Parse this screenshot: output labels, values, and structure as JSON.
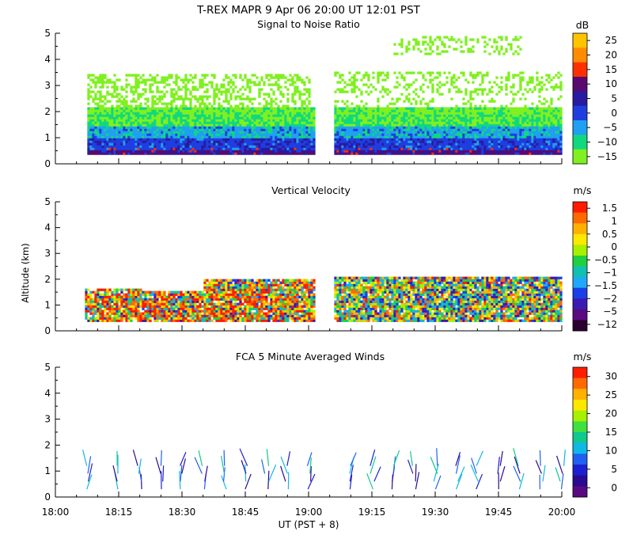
{
  "figure": {
    "title": "T-REX  MAPR  9 Apr 06  20:00 UT  12:01  PST",
    "xlabel": "UT  (PST + 8)",
    "ylabel": "Altitude (km)"
  },
  "chart_data": [
    {
      "type": "heatmap",
      "title": "Signal to Noise Ratio",
      "units": "dB",
      "xlim": [
        0,
        120
      ],
      "x_tick_minutes": [
        0,
        15,
        30,
        45,
        60,
        75,
        90,
        105,
        120
      ],
      "x_tick_labels": [
        "18:00",
        "18:15",
        "18:30",
        "18:45",
        "19:00",
        "19:15",
        "19:30",
        "19:45",
        "20:00"
      ],
      "ylim": [
        0,
        5
      ],
      "y_ticks": [
        0,
        1,
        2,
        3,
        4,
        5
      ],
      "data_gaps_minutes": [
        [
          0,
          7
        ],
        [
          61.5,
          66
        ],
        [
          120,
          120
        ]
      ],
      "colorbar_labels": [
        "25",
        "20",
        "15",
        "10",
        "5",
        "0",
        "−5",
        "−10",
        "−15"
      ],
      "colorbar_colors": [
        "#ffc400",
        "#ff8c00",
        "#ff3000",
        "#5a0a6e",
        "#2a1aa0",
        "#1f3ee0",
        "#20a0f0",
        "#10d880",
        "#80f020"
      ],
      "profile": [
        {
          "altitude_km": 0.5,
          "value_db": 5
        },
        {
          "altitude_km": 1.0,
          "value_db": 0
        },
        {
          "altitude_km": 1.5,
          "value_db": -5
        },
        {
          "altitude_km": 2.0,
          "value_db": -10
        },
        {
          "altitude_km": 3.2,
          "value_db": -15
        },
        {
          "altitude_km": 4.6,
          "value_db": -15
        }
      ]
    },
    {
      "type": "heatmap",
      "title": "Vertical Velocity",
      "units": "m/s",
      "xlim": [
        0,
        120
      ],
      "ylim": [
        0,
        5
      ],
      "y_ticks": [
        0,
        1,
        2,
        3,
        4,
        5
      ],
      "colorbar_labels": [
        "1.5",
        "1",
        "0.5",
        "0",
        "−0.5",
        "−1",
        "−1.5",
        "−2",
        "−5",
        "−12"
      ],
      "colorbar_colors": [
        "#ff1c00",
        "#ff6a00",
        "#ffb000",
        "#ffe800",
        "#a8f000",
        "#20d040",
        "#10c0b0",
        "#20a8f8",
        "#1a40e8",
        "#3a1ab0",
        "#5a0a80",
        "#2a0030"
      ],
      "max_altitude_km": 2.1
    },
    {
      "type": "barbs",
      "title": "FCA 5 Minute Averaged Winds",
      "units": "m/s",
      "xlim": [
        0,
        120
      ],
      "ylim": [
        0,
        5
      ],
      "y_ticks": [
        0,
        1,
        2,
        3,
        4,
        5
      ],
      "colorbar_labels": [
        "30",
        "25",
        "20",
        "15",
        "10",
        "5",
        "0"
      ],
      "colorbar_colors": [
        "#ff1c00",
        "#ff6a00",
        "#ffb000",
        "#ffe800",
        "#a8f000",
        "#40e040",
        "#10c890",
        "#10b8e8",
        "#2060f0",
        "#1a20d0",
        "#2a0a90",
        "#5a0a80"
      ],
      "barb_times_minutes": [
        8,
        15,
        20,
        25,
        30,
        35,
        40,
        45,
        50,
        55,
        60,
        70,
        75,
        80,
        85,
        90,
        95,
        100,
        105,
        110,
        115,
        120
      ],
      "barb_altitudes_km": [
        0.3,
        0.6,
        0.9,
        1.2
      ]
    }
  ]
}
